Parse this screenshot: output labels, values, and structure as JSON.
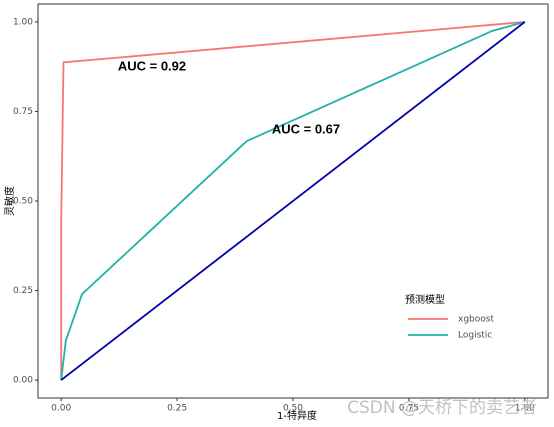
{
  "chart_data": {
    "type": "line",
    "x_label": "1-特异度",
    "y_label": "灵敏度",
    "legend_title": "预测模型",
    "series": [
      {
        "name": "xgboost",
        "color": "#F8766D",
        "x": [
          0,
          0,
          0.005,
          1
        ],
        "values": [
          0,
          0.44,
          0.887,
          1
        ]
      },
      {
        "name": "Logistic",
        "color": "#20B2AA",
        "x": [
          0,
          0.01,
          0.045,
          0.4,
          0.93,
          1
        ],
        "values": [
          0,
          0.11,
          0.24,
          0.667,
          0.975,
          1
        ]
      },
      {
        "color": "#0000AA",
        "x": [
          0,
          1
        ],
        "values": [
          0,
          1
        ]
      }
    ],
    "annotations": [
      "AUC = 0.92",
      "AUC = 0.67"
    ],
    "xlim": [
      -0.05,
      1.05
    ],
    "ylim": [
      -0.05,
      1.05
    ],
    "xticks": [
      {
        "value": 0,
        "label": "0.00"
      },
      {
        "value": 0.25,
        "label": "0.25"
      },
      {
        "value": 0.5,
        "label": "0.50"
      },
      {
        "value": 0.75,
        "label": "0.75"
      },
      {
        "value": 1,
        "label": "1.00"
      }
    ],
    "yticks": [
      {
        "value": 0,
        "label": "0.00"
      },
      {
        "value": 0.25,
        "label": "0.25"
      },
      {
        "value": 0.5,
        "label": "0.50"
      },
      {
        "value": 0.75,
        "label": "0.75"
      },
      {
        "value": 1,
        "label": "1.00"
      }
    ],
    "grid": false,
    "watermark": "CSDN @天桥下的卖艺者"
  }
}
